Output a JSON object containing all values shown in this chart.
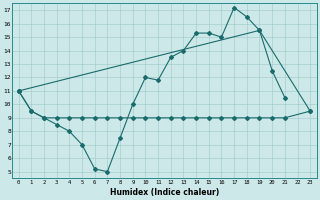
{
  "xlabel": "Humidex (Indice chaleur)",
  "bg_color": "#cce8e8",
  "line_color": "#1a6b6b",
  "xlim": [
    -0.5,
    23.5
  ],
  "ylim": [
    4.5,
    17.5
  ],
  "xticks": [
    0,
    1,
    2,
    3,
    4,
    5,
    6,
    7,
    8,
    9,
    10,
    11,
    12,
    13,
    14,
    15,
    16,
    17,
    18,
    19,
    20,
    21,
    22,
    23
  ],
  "yticks": [
    5,
    6,
    7,
    8,
    9,
    10,
    11,
    12,
    13,
    14,
    15,
    16,
    17
  ],
  "line1_x": [
    0,
    1,
    2,
    3,
    4,
    5,
    6,
    7,
    8,
    9,
    10,
    11,
    12,
    13,
    14,
    15,
    16,
    17,
    18,
    19,
    20,
    21
  ],
  "line1_y": [
    11,
    9.5,
    9,
    8.5,
    8,
    7,
    5.2,
    5.0,
    7.5,
    10,
    12,
    11.8,
    13.5,
    14,
    15.3,
    15.3,
    15,
    17.2,
    16.5,
    15.5,
    12.5,
    10.5
  ],
  "line2_x": [
    0,
    1,
    2,
    3,
    4,
    5,
    6,
    7,
    8,
    9,
    10,
    11,
    12,
    13,
    14,
    15,
    16,
    17,
    18,
    19,
    20,
    21,
    23
  ],
  "line2_y": [
    11,
    9.5,
    9,
    9,
    9,
    9,
    9,
    9,
    9,
    9,
    9,
    9,
    9,
    9,
    9,
    9,
    9,
    9,
    9,
    9,
    9,
    9,
    9.5
  ],
  "line3_x": [
    0,
    19,
    23
  ],
  "line3_y": [
    11,
    15.5,
    9.5
  ]
}
